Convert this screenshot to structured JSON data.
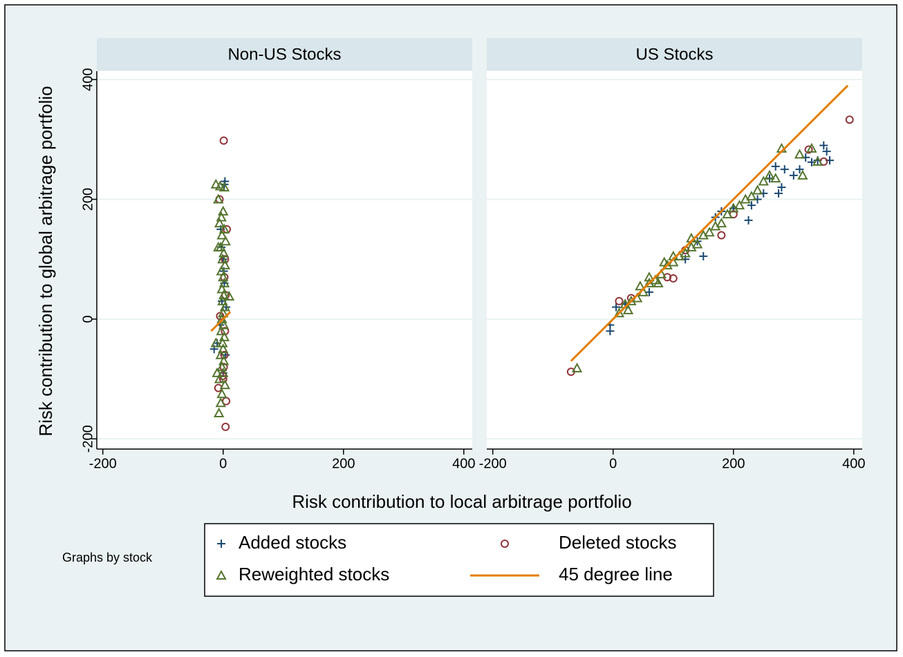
{
  "y_label": "Risk contribution to global arbitrage portfolio",
  "x_label": "Risk contribution to local arbitrage portfolio",
  "note": "Graphs by stock",
  "chart_data": [
    {
      "type": "scatter",
      "title": "Non-US Stocks",
      "xlim": [
        -210,
        414
      ],
      "ylim": [
        -217,
        414
      ],
      "xticks": [
        -200,
        0,
        200,
        400
      ],
      "yticks": [
        -200,
        0,
        200,
        400
      ],
      "grid": true,
      "series": [
        {
          "name": "Added stocks",
          "color": "#1a476f",
          "marker": "plus",
          "x": [
            3,
            2,
            -4,
            0,
            2,
            -2,
            5,
            -10,
            -15,
            -5,
            1,
            -3,
            4,
            0
          ],
          "values": [
            230,
            225,
            150,
            100,
            60,
            30,
            20,
            -40,
            -50,
            -10,
            80,
            120,
            -60,
            -90
          ]
        },
        {
          "name": "Deleted stocks",
          "color": "#90353b",
          "marker": "circle",
          "x": [
            1,
            -6,
            6,
            3,
            2,
            4,
            -5,
            3,
            2,
            -1,
            -8,
            5,
            4,
            0,
            1
          ],
          "values": [
            298,
            200,
            150,
            100,
            70,
            40,
            5,
            -20,
            -60,
            -95,
            -115,
            -137,
            -180,
            -100,
            -80
          ]
        },
        {
          "name": "Reweighted stocks",
          "color": "#55752f",
          "marker": "triangle",
          "x": [
            -12,
            -5,
            2,
            -8,
            0,
            -3,
            -6,
            2,
            -2,
            4,
            -4,
            1,
            -1,
            3,
            -3,
            0,
            2,
            -2,
            1,
            10,
            -1,
            3,
            0,
            -2,
            1,
            -3,
            2,
            -1,
            0,
            -4,
            1,
            -2,
            0,
            -6,
            3,
            -2,
            -4,
            -7,
            -10,
            -12,
            -8
          ],
          "values": [
            225,
            222,
            220,
            200,
            180,
            170,
            160,
            150,
            140,
            130,
            120,
            110,
            100,
            90,
            80,
            70,
            60,
            50,
            40,
            38,
            30,
            20,
            10,
            0,
            -10,
            -20,
            -30,
            -40,
            -50,
            -60,
            -70,
            -80,
            -90,
            -100,
            -110,
            -125,
            -140,
            -157,
            -90,
            -40,
            120
          ]
        },
        {
          "name": "45 degree line",
          "color": "#e37e00",
          "marker": "line",
          "x": [
            -20,
            12
          ],
          "values": [
            -20,
            12
          ]
        }
      ]
    },
    {
      "type": "scatter",
      "title": "US Stocks",
      "xlim": [
        -210,
        414
      ],
      "ylim": [
        -217,
        414
      ],
      "xticks": [
        -200,
        0,
        200,
        400
      ],
      "yticks": [
        -200,
        0,
        200,
        400
      ],
      "grid": true,
      "series": [
        {
          "name": "Added stocks",
          "color": "#1a476f",
          "marker": "plus",
          "x": [
            -5,
            5,
            -5,
            20,
            150,
            180,
            200,
            230,
            240,
            250,
            260,
            270,
            280,
            275,
            300,
            310,
            320,
            330,
            340,
            350,
            355,
            360,
            285,
            170,
            140,
            225,
            120,
            60
          ],
          "values": [
            -20,
            20,
            -10,
            25,
            105,
            180,
            185,
            190,
            200,
            210,
            235,
            255,
            220,
            210,
            240,
            250,
            270,
            262,
            265,
            290,
            280,
            265,
            250,
            170,
            130,
            165,
            100,
            45
          ]
        },
        {
          "name": "Deleted stocks",
          "color": "#90353b",
          "marker": "circle",
          "x": [
            -70,
            10,
            30,
            90,
            100,
            120,
            180,
            200,
            325,
            350,
            393
          ],
          "values": [
            -88,
            30,
            35,
            70,
            68,
            115,
            140,
            175,
            283,
            263,
            333
          ]
        },
        {
          "name": "Reweighted stocks",
          "color": "#55752f",
          "marker": "triangle",
          "x": [
            -60,
            10,
            20,
            30,
            40,
            50,
            60,
            70,
            80,
            90,
            100,
            110,
            120,
            130,
            140,
            150,
            160,
            170,
            180,
            190,
            200,
            210,
            220,
            230,
            240,
            250,
            260,
            270,
            280,
            310,
            315,
            330,
            340,
            60,
            100,
            130,
            25,
            45,
            85,
            75
          ],
          "values": [
            -82,
            10,
            25,
            30,
            35,
            45,
            60,
            65,
            75,
            90,
            95,
            105,
            110,
            120,
            125,
            140,
            145,
            155,
            160,
            175,
            185,
            190,
            200,
            205,
            215,
            230,
            240,
            235,
            285,
            275,
            240,
            285,
            263,
            70,
            105,
            135,
            15,
            55,
            95,
            60
          ]
        },
        {
          "name": "45 degree line",
          "color": "#e37e00",
          "marker": "line",
          "x": [
            -70,
            390
          ],
          "values": [
            -70,
            390
          ]
        }
      ]
    }
  ]
}
